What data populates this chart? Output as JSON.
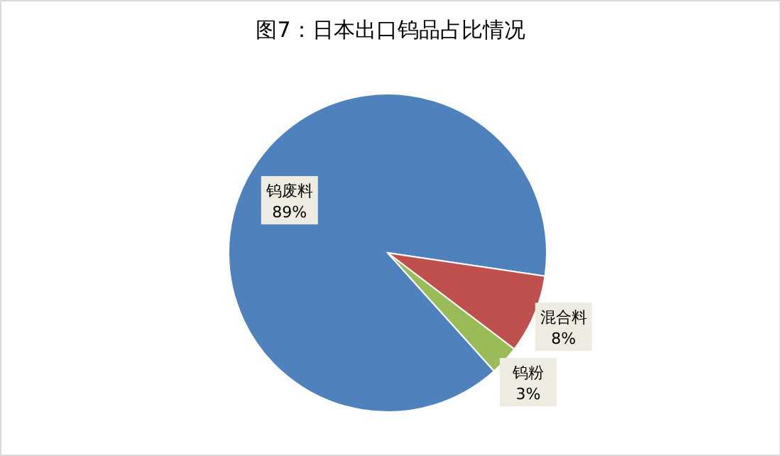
{
  "chart_data": {
    "type": "pie",
    "title": "图7：日本出口钨品占比情况",
    "categories": [
      "钨废料",
      "混合料",
      "钨粉"
    ],
    "values": [
      89,
      8,
      3
    ],
    "value_labels": [
      "89%",
      "8%",
      "3%"
    ],
    "colors": [
      "#4f81bd",
      "#c0504d",
      "#9bbb59"
    ],
    "legend": false
  }
}
